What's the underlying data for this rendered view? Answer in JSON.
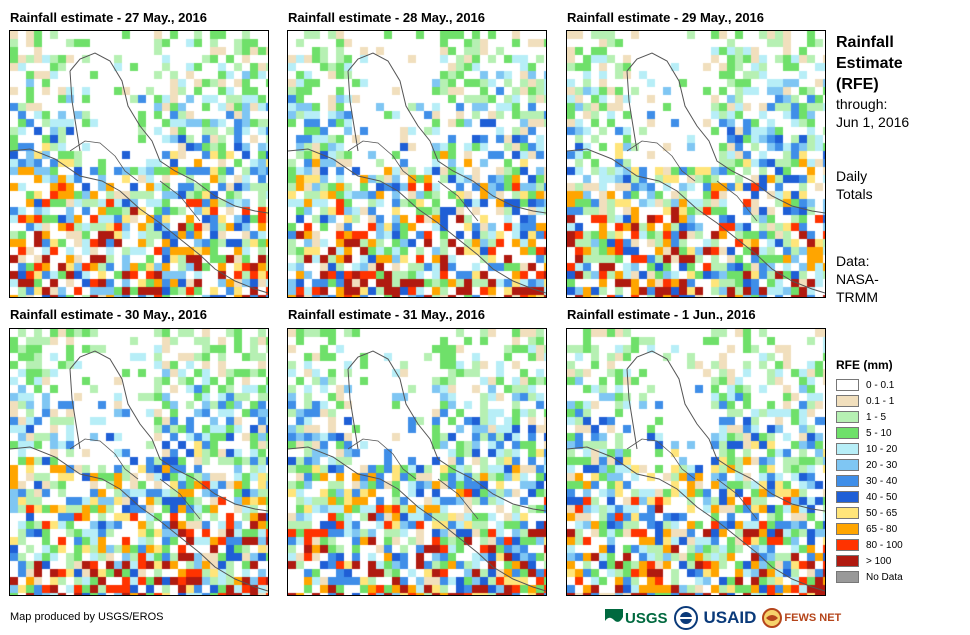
{
  "panels": [
    {
      "title": "Rainfall estimate - 27 May., 2016"
    },
    {
      "title": "Rainfall estimate - 28 May., 2016"
    },
    {
      "title": "Rainfall estimate - 29 May., 2016"
    },
    {
      "title": "Rainfall estimate - 30 May., 2016"
    },
    {
      "title": "Rainfall estimate - 31 May., 2016"
    },
    {
      "title": "Rainfall estimate - 1 Jun., 2016"
    }
  ],
  "side": {
    "title_line1": "Rainfall",
    "title_line2": "Estimate",
    "title_line3": "(RFE)",
    "through_label": "through:",
    "through_date": "Jun 1, 2016",
    "totals_line1": "Daily",
    "totals_line2": "Totals",
    "data_label": "Data:",
    "data_line1": "NASA-",
    "data_line2": "TRMM"
  },
  "legend": {
    "title": "RFE (mm)",
    "items": [
      {
        "label": "0 - 0.1",
        "color": "#ffffff"
      },
      {
        "label": "0.1 - 1",
        "color": "#f1dfbd"
      },
      {
        "label": "1 - 5",
        "color": "#b6f0b3"
      },
      {
        "label": "5 - 10",
        "color": "#6fe06a"
      },
      {
        "label": "10 - 20",
        "color": "#b7eef7"
      },
      {
        "label": "20 - 30",
        "color": "#7fc6f3"
      },
      {
        "label": "30 - 40",
        "color": "#3f8ee8"
      },
      {
        "label": "40 - 50",
        "color": "#1f5fd6"
      },
      {
        "label": "50 - 65",
        "color": "#ffe57a"
      },
      {
        "label": "65 - 80",
        "color": "#ffa500"
      },
      {
        "label": "80 - 100",
        "color": "#ff3300"
      },
      {
        "label": "> 100",
        "color": "#b01a10"
      },
      {
        "label": "No Data",
        "color": "#999999"
      }
    ]
  },
  "credit": "Map produced by USGS/EROS",
  "logos": {
    "usgs": "USGS",
    "usaid": "USAID",
    "fewsnet": "FEWS NET"
  }
}
